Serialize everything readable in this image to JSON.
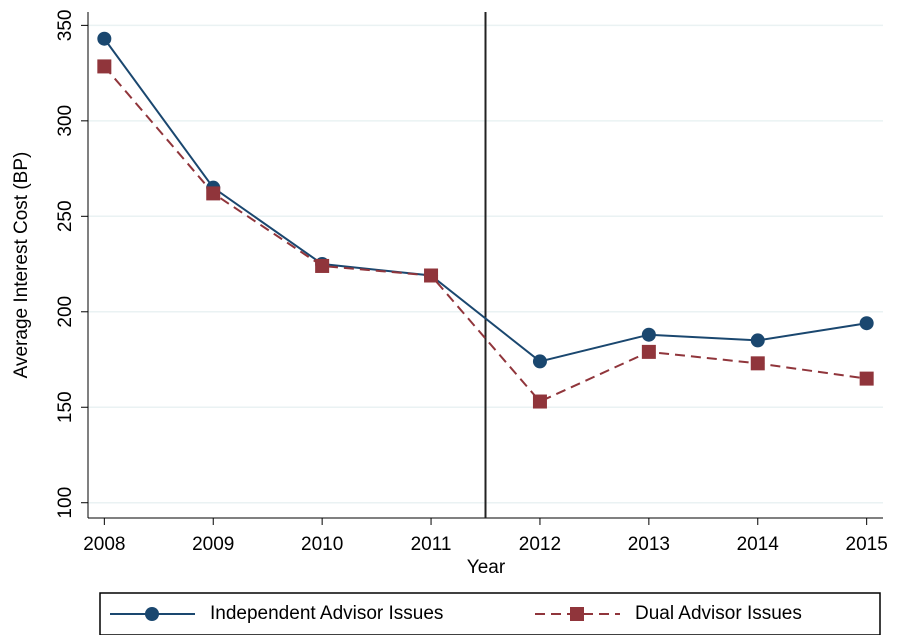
{
  "chart_data": {
    "type": "line",
    "x": [
      2008,
      2009,
      2010,
      2011,
      2012,
      2013,
      2014,
      2015
    ],
    "x_label": "Year",
    "y_label": "Average Interest Cost (BP)",
    "series": [
      {
        "name": "Independent Advisor Issues",
        "color": "#1a476f",
        "marker": "circle",
        "dashed": false,
        "values": [
          343,
          265,
          225,
          219,
          174,
          188,
          185,
          194
        ]
      },
      {
        "name": "Dual Advisor Issues",
        "color": "#90353b",
        "marker": "square",
        "dashed": true,
        "values": [
          328.5,
          262,
          224,
          219,
          153,
          179,
          173,
          165
        ]
      }
    ],
    "xlim": [
      2007.85,
      2015.15
    ],
    "xticks": [
      2008,
      2009,
      2010,
      2011,
      2012,
      2013,
      2014,
      2015
    ],
    "ylim": [
      92,
      357
    ],
    "yticks": [
      100,
      150,
      200,
      250,
      300,
      350
    ],
    "vline": 2011.5,
    "grid": true,
    "legend": "bottom"
  }
}
